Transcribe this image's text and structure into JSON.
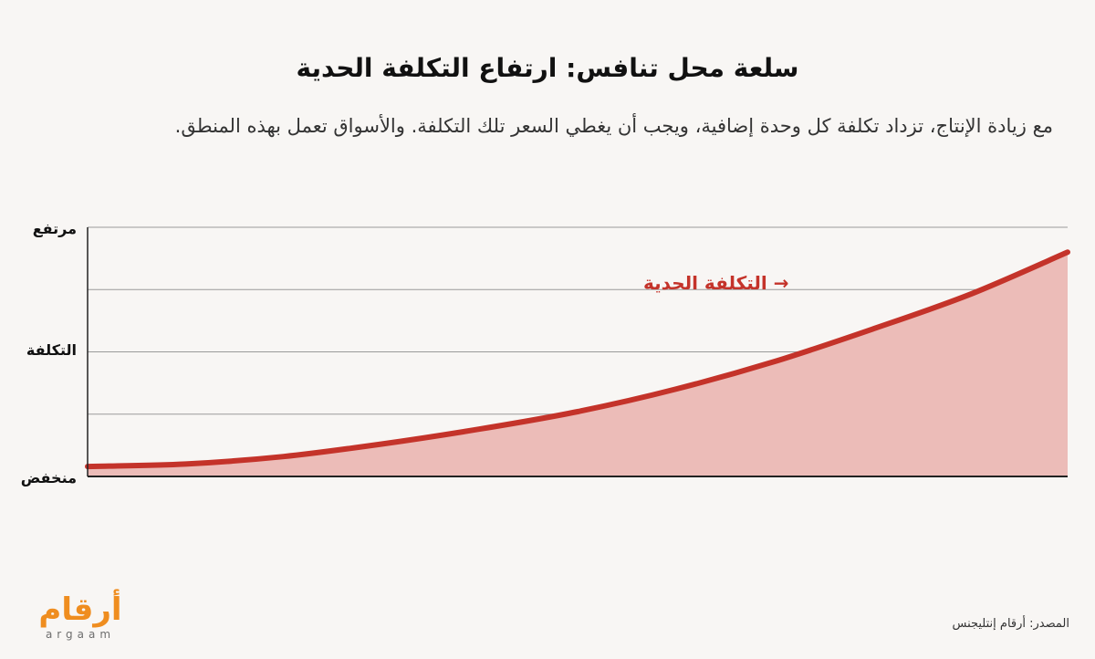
{
  "header": {
    "title": "سلعة محل تنافس: ارتفاع التكلفة الحدية",
    "subtitle": "مع زيادة الإنتاج، تزداد تكلفة كل وحدة إضافية، ويجب أن يغطي السعر تلك التكلفة. والأسواق تعمل بهذه المنطق."
  },
  "chart_data": {
    "type": "area",
    "title": "سلعة محل تنافس: ارتفاع التكلفة الحدية",
    "xlabel": "",
    "ylabel": "التكلفة",
    "y_tick_labels": {
      "high": "مرتفع",
      "low": "منخفض"
    },
    "xlim": [
      0,
      1
    ],
    "ylim": [
      0,
      1
    ],
    "gridlines": 4,
    "series": [
      {
        "name": "→ التكلفة الحدية",
        "x": [
          0,
          0.1,
          0.2,
          0.3,
          0.4,
          0.5,
          0.6,
          0.7,
          0.8,
          0.9,
          1
        ],
        "y": [
          0.04,
          0.05,
          0.08,
          0.13,
          0.19,
          0.26,
          0.35,
          0.46,
          0.59,
          0.73,
          0.9
        ],
        "color": "#c4332a",
        "fill_color": "#ecbcb8"
      }
    ],
    "colors": {
      "line": "#c4332a",
      "fill": "#ecbcb8",
      "grid": "#9a9a9a",
      "axis": "#222222"
    }
  },
  "footer": {
    "logo_arabic": "أرقام",
    "logo_latin": "argaam",
    "source": "المصدر: أرقام إنتليجنس"
  }
}
